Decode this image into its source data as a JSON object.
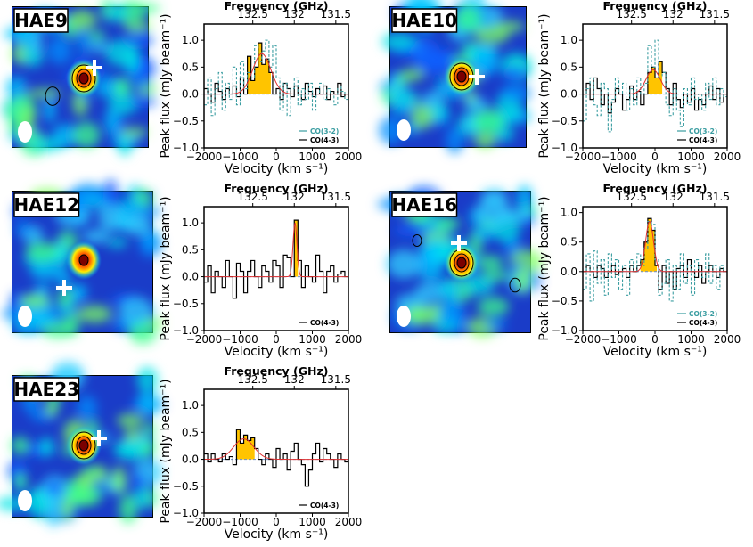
{
  "figure": {
    "freq_axis_label": "Frequency (GHz)",
    "velocity_axis_label": "Velocity (km s⁻¹)",
    "flux_axis_label": "Peak flux (mJy beam⁻¹)",
    "freq_ticks": [
      "132.5",
      "132",
      "131.5"
    ],
    "velocity_ticks": [
      "−2000",
      "−1000",
      "0",
      "1000",
      "2000"
    ],
    "flux_ticks": [
      "−1.0",
      "−0.5",
      "0.0",
      "0.5",
      "1.0"
    ]
  },
  "colors": {
    "co43": "#000000",
    "co32": "#3a9da1",
    "fill": "#ffc400",
    "fit": "#e03030"
  },
  "panels": [
    {
      "id": "hae9",
      "label": "HAE9",
      "legend": [
        "CO(3-2)",
        "CO(4-3)"
      ],
      "chart_data": {
        "type": "line",
        "title": "HAE9",
        "xlabel": "Velocity (km s⁻¹)",
        "ylabel": "Peak flux (mJy beam⁻¹)",
        "xlim": [
          -2000,
          2000
        ],
        "ylim": [
          -1.0,
          1.3
        ],
        "secondary_xlabel": "Frequency (GHz)",
        "series": [
          {
            "name": "CO(4-3)",
            "x": [
              -2000,
              -1900,
              -1800,
              -1700,
              -1600,
              -1500,
              -1400,
              -1300,
              -1200,
              -1100,
              -1000,
              -900,
              -800,
              -700,
              -600,
              -500,
              -400,
              -300,
              -200,
              -100,
              0,
              100,
              200,
              300,
              400,
              500,
              600,
              700,
              800,
              900,
              1000,
              1100,
              1200,
              1300,
              1400,
              1500,
              1600,
              1700,
              1800,
              1900
            ],
            "values": [
              0.1,
              0.0,
              -0.15,
              0.2,
              0.05,
              -0.1,
              0.1,
              0.0,
              0.15,
              -0.05,
              0.3,
              0.0,
              0.7,
              0.25,
              0.5,
              0.95,
              0.55,
              0.65,
              0.4,
              0.0,
              0.1,
              -0.1,
              0.2,
              0.1,
              -0.05,
              0.15,
              0.0,
              -0.1,
              0.2,
              0.05,
              -0.05,
              0.1,
              0.0,
              0.15,
              -0.1,
              0.05,
              0.0,
              0.2,
              -0.05,
              0.0
            ]
          },
          {
            "name": "CO(3-2)",
            "x": [
              -2000,
              -1900,
              -1800,
              -1700,
              -1600,
              -1500,
              -1400,
              -1300,
              -1200,
              -1100,
              -1000,
              -900,
              -800,
              -700,
              -600,
              -500,
              -400,
              -300,
              -200,
              -100,
              0,
              100,
              200,
              300,
              400,
              500,
              600,
              700,
              800,
              900,
              1000,
              1100,
              1200,
              1300,
              1400,
              1500,
              1600,
              1700,
              1800,
              1900
            ],
            "values": [
              -0.2,
              0.3,
              -0.4,
              0.1,
              0.4,
              -0.3,
              0.2,
              -0.1,
              0.5,
              -0.2,
              0.6,
              0.1,
              0.4,
              0.3,
              0.9,
              0.6,
              0.8,
              1.0,
              0.5,
              0.9,
              0.3,
              -0.3,
              0.2,
              -0.4,
              0.1,
              0.3,
              -0.2,
              0.1,
              -0.1,
              0.2,
              -0.3,
              0.0,
              0.2,
              -0.1,
              0.1,
              0.0,
              -0.2,
              0.15,
              0.05,
              -0.1
            ]
          }
        ],
        "fit": {
          "center": -400,
          "amplitude": 0.75,
          "sigma": 250
        },
        "fill_range": [
          -850,
          -150
        ]
      }
    },
    {
      "id": "hae10",
      "label": "HAE10",
      "legend": [
        "CO(3-2)",
        "CO(4-3)"
      ],
      "chart_data": {
        "type": "line",
        "title": "HAE10",
        "xlabel": "Velocity (km s⁻¹)",
        "ylabel": "Peak flux (mJy beam⁻¹)",
        "xlim": [
          -2000,
          2000
        ],
        "ylim": [
          -1.0,
          1.3
        ],
        "secondary_xlabel": "Frequency (GHz)",
        "series": [
          {
            "name": "CO(4-3)",
            "x": [
              -2000,
              -1900,
              -1800,
              -1700,
              -1600,
              -1500,
              -1400,
              -1300,
              -1200,
              -1100,
              -1000,
              -900,
              -800,
              -700,
              -600,
              -500,
              -400,
              -300,
              -200,
              -100,
              0,
              100,
              200,
              300,
              400,
              500,
              600,
              700,
              800,
              900,
              1000,
              1100,
              1200,
              1300,
              1400,
              1500,
              1600,
              1700,
              1800,
              1900
            ],
            "values": [
              0.0,
              0.2,
              -0.1,
              0.3,
              0.1,
              -0.2,
              0.0,
              -0.35,
              -0.15,
              0.1,
              0.0,
              -0.3,
              -0.1,
              0.15,
              -0.1,
              0.05,
              -0.2,
              0.0,
              0.4,
              0.5,
              0.3,
              0.6,
              0.4,
              0.1,
              -0.2,
              0.2,
              -0.1,
              -0.25,
              0.0,
              -0.15,
              0.1,
              -0.3,
              -0.1,
              -0.2,
              0.0,
              0.15,
              -0.1,
              0.1,
              -0.15,
              0.0
            ]
          },
          {
            "name": "CO(3-2)",
            "x": [
              -2000,
              -1900,
              -1800,
              -1700,
              -1600,
              -1500,
              -1400,
              -1300,
              -1200,
              -1100,
              -1000,
              -900,
              -800,
              -700,
              -600,
              -500,
              -400,
              -300,
              -200,
              -100,
              0,
              100,
              200,
              300,
              400,
              500,
              600,
              700,
              800,
              900,
              1000,
              1100,
              1200,
              1300,
              1400,
              1500,
              1600,
              1700,
              1800,
              1900
            ],
            "values": [
              -0.5,
              0.1,
              0.3,
              -0.2,
              -0.4,
              0.2,
              0.1,
              -0.7,
              -0.1,
              0.3,
              0.0,
              0.2,
              -0.3,
              0.1,
              -0.2,
              0.3,
              0.0,
              0.2,
              0.9,
              0.5,
              1.0,
              0.3,
              0.4,
              -0.2,
              -0.4,
              0.1,
              -0.3,
              -0.6,
              0.1,
              -0.2,
              0.3,
              -0.1,
              0.0,
              -0.3,
              0.2,
              -0.1,
              0.3,
              -0.2,
              0.1,
              -0.05
            ]
          }
        ],
        "fit": {
          "center": -50,
          "amplitude": 0.45,
          "sigma": 200
        },
        "fill_range": [
          -300,
          200
        ]
      }
    },
    {
      "id": "hae12",
      "label": "HAE12",
      "legend": [
        "CO(4-3)"
      ],
      "chart_data": {
        "type": "line",
        "title": "HAE12",
        "xlabel": "Velocity (km s⁻¹)",
        "ylabel": "Peak flux (mJy beam⁻¹)",
        "xlim": [
          -2000,
          2000
        ],
        "ylim": [
          -1.0,
          1.3
        ],
        "secondary_xlabel": "Frequency (GHz)",
        "series": [
          {
            "name": "CO(4-3)",
            "x": [
              -2000,
              -1900,
              -1800,
              -1700,
              -1600,
              -1500,
              -1400,
              -1300,
              -1200,
              -1100,
              -1000,
              -900,
              -800,
              -700,
              -600,
              -500,
              -400,
              -300,
              -200,
              -100,
              0,
              100,
              200,
              300,
              400,
              500,
              600,
              700,
              800,
              900,
              1000,
              1100,
              1200,
              1300,
              1400,
              1500,
              1600,
              1700,
              1800,
              1900
            ],
            "values": [
              -0.1,
              0.2,
              -0.3,
              0.1,
              0.0,
              -0.2,
              0.3,
              0.0,
              -0.4,
              0.25,
              0.1,
              -0.3,
              0.1,
              0.3,
              0.0,
              -0.2,
              0.2,
              0.1,
              -0.1,
              0.3,
              0.2,
              -0.2,
              0.4,
              0.35,
              0.0,
              1.05,
              0.3,
              -0.2,
              0.2,
              0.0,
              -0.1,
              0.4,
              0.1,
              -0.3,
              0.1,
              0.2,
              -0.1,
              0.05,
              0.1,
              0.0
            ]
          }
        ],
        "fit": {
          "center": 520,
          "amplitude": 1.0,
          "sigma": 55
        },
        "fill_range": [
          450,
          600
        ]
      }
    },
    {
      "id": "hae16",
      "label": "HAE16",
      "legend": [
        "CO(3-2)",
        "CO(4-3)"
      ],
      "chart_data": {
        "type": "line",
        "title": "HAE16",
        "xlabel": "Velocity (km s⁻¹)",
        "ylabel": "Peak flux (mJy beam⁻¹)",
        "xlim": [
          -2000,
          2000
        ],
        "ylim": [
          -1.0,
          1.1
        ],
        "secondary_xlabel": "Frequency (GHz)",
        "series": [
          {
            "name": "CO(4-3)",
            "x": [
              -2000,
              -1900,
              -1800,
              -1700,
              -1600,
              -1500,
              -1400,
              -1300,
              -1200,
              -1100,
              -1000,
              -900,
              -800,
              -700,
              -600,
              -500,
              -400,
              -300,
              -200,
              -100,
              0,
              100,
              200,
              300,
              400,
              500,
              600,
              700,
              800,
              900,
              1000,
              1100,
              1200,
              1300,
              1400,
              1500,
              1600,
              1700,
              1800,
              1900
            ],
            "values": [
              0.0,
              0.1,
              0.0,
              -0.1,
              0.1,
              0.05,
              -0.1,
              0.0,
              0.1,
              -0.05,
              0.0,
              0.05,
              -0.1,
              0.1,
              0.0,
              0.1,
              0.2,
              0.5,
              0.9,
              0.7,
              0.1,
              -0.3,
              0.1,
              -0.2,
              0.0,
              -0.3,
              0.05,
              0.1,
              -0.1,
              0.2,
              0.0,
              -0.1,
              0.1,
              -0.2,
              0.0,
              0.1,
              0.0,
              -0.1,
              0.05,
              0.0
            ]
          },
          {
            "name": "CO(3-2)",
            "x": [
              -2000,
              -1900,
              -1800,
              -1700,
              -1600,
              -1500,
              -1400,
              -1300,
              -1200,
              -1100,
              -1000,
              -900,
              -800,
              -700,
              -600,
              -500,
              -400,
              -300,
              -200,
              -100,
              0,
              100,
              200,
              300,
              400,
              500,
              600,
              700,
              800,
              900,
              1000,
              1100,
              1200,
              1300,
              1400,
              1500,
              1600,
              1700,
              1800,
              1900
            ],
            "values": [
              -0.3,
              0.3,
              -0.5,
              0.35,
              -0.2,
              0.2,
              -0.4,
              0.3,
              -0.1,
              0.2,
              -0.3,
              0.1,
              -0.4,
              0.2,
              0.0,
              0.3,
              0.1,
              0.4,
              0.85,
              0.8,
              0.2,
              -0.4,
              -0.2,
              0.2,
              -0.5,
              0.1,
              -0.3,
              0.3,
              -0.2,
              0.1,
              -0.4,
              0.2,
              0.0,
              -0.1,
              0.3,
              -0.2,
              0.1,
              -0.3,
              0.1,
              0.0
            ]
          }
        ],
        "fit": {
          "center": -150,
          "amplitude": 0.85,
          "sigma": 110
        },
        "fill_range": [
          -400,
          50
        ]
      }
    },
    {
      "id": "hae23",
      "label": "HAE23",
      "legend": [
        "CO(4-3)"
      ],
      "chart_data": {
        "type": "line",
        "title": "HAE23",
        "xlabel": "Velocity (km s⁻¹)",
        "ylabel": "Peak flux (mJy beam⁻¹)",
        "xlim": [
          -2000,
          2000
        ],
        "ylim": [
          -1.0,
          1.3
        ],
        "secondary_xlabel": "Frequency (GHz)",
        "series": [
          {
            "name": "CO(4-3)",
            "x": [
              -2000,
              -1900,
              -1800,
              -1700,
              -1600,
              -1500,
              -1400,
              -1300,
              -1200,
              -1100,
              -1000,
              -900,
              -800,
              -700,
              -600,
              -500,
              -400,
              -300,
              -200,
              -100,
              0,
              100,
              200,
              300,
              400,
              500,
              600,
              700,
              800,
              900,
              1000,
              1100,
              1200,
              1300,
              1400,
              1500,
              1600,
              1700,
              1800,
              1900
            ],
            "values": [
              0.1,
              -0.05,
              0.1,
              0.0,
              -0.05,
              0.1,
              0.0,
              0.05,
              -0.1,
              0.55,
              0.3,
              0.45,
              0.35,
              0.4,
              0.2,
              0.0,
              -0.1,
              0.1,
              0.0,
              -0.15,
              0.2,
              0.0,
              0.1,
              -0.2,
              0.15,
              0.3,
              0.0,
              -0.1,
              -0.5,
              -0.2,
              0.1,
              0.3,
              -0.05,
              0.2,
              0.1,
              0.0,
              -0.15,
              0.1,
              0.0,
              -0.05
            ]
          }
        ],
        "fit": {
          "center": -900,
          "amplitude": 0.38,
          "sigma": 280
        },
        "fill_range": [
          -1150,
          -600
        ]
      }
    }
  ]
}
